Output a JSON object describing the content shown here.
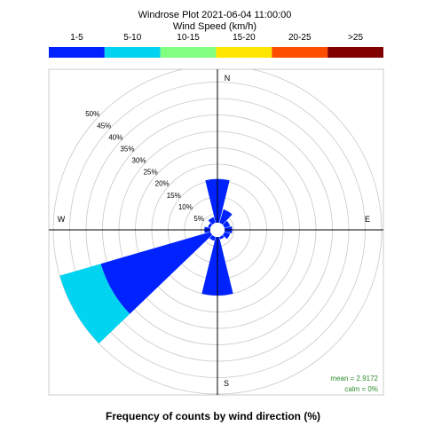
{
  "chart_data": {
    "type": "windrose",
    "title": "Windrose Plot  2021-06-04 11:00:00",
    "legend_title": "Wind Speed (km/h)",
    "speed_bins": [
      {
        "label": "1-5",
        "color": "#0022ff"
      },
      {
        "label": "5-10",
        "color": "#00d4f0"
      },
      {
        "label": "10-15",
        "color": "#80ff80"
      },
      {
        "label": "15-20",
        "color": "#ffe600"
      },
      {
        "label": "20-25",
        "color": "#ff4d00"
      },
      {
        "label": ">25",
        "color": "#800000"
      }
    ],
    "radial_ticks": [
      "5%",
      "10%",
      "15%",
      "20%",
      "25%",
      "30%",
      "35%",
      "40%",
      "45%",
      "50%"
    ],
    "radial_max": 50,
    "inner_radius_pct": 2.2,
    "compass": {
      "n": "N",
      "e": "E",
      "s": "S",
      "w": "W"
    },
    "sector_width_deg": 30,
    "sectors": [
      {
        "direction_deg": 0,
        "values": [
          15.5
        ]
      },
      {
        "direction_deg": 30,
        "values": [
          6.5
        ]
      },
      {
        "direction_deg": 60,
        "values": [
          4.0
        ]
      },
      {
        "direction_deg": 90,
        "values": [
          4.5
        ]
      },
      {
        "direction_deg": 120,
        "values": [
          4.0
        ]
      },
      {
        "direction_deg": 150,
        "values": [
          3.0
        ]
      },
      {
        "direction_deg": 180,
        "values": [
          20.0
        ]
      },
      {
        "direction_deg": 210,
        "values": [
          3.5
        ]
      },
      {
        "direction_deg": 240,
        "values": [
          37.0,
          13.0
        ]
      },
      {
        "direction_deg": 270,
        "values": [
          4.0
        ]
      },
      {
        "direction_deg": 300,
        "values": [
          3.0
        ]
      },
      {
        "direction_deg": 330,
        "values": [
          4.0
        ]
      }
    ],
    "stats": {
      "mean": "mean = 2.9172",
      "calm": "calm = 0%"
    },
    "xlabel": "Frequency of counts by wind direction (%)",
    "grid": true
  }
}
